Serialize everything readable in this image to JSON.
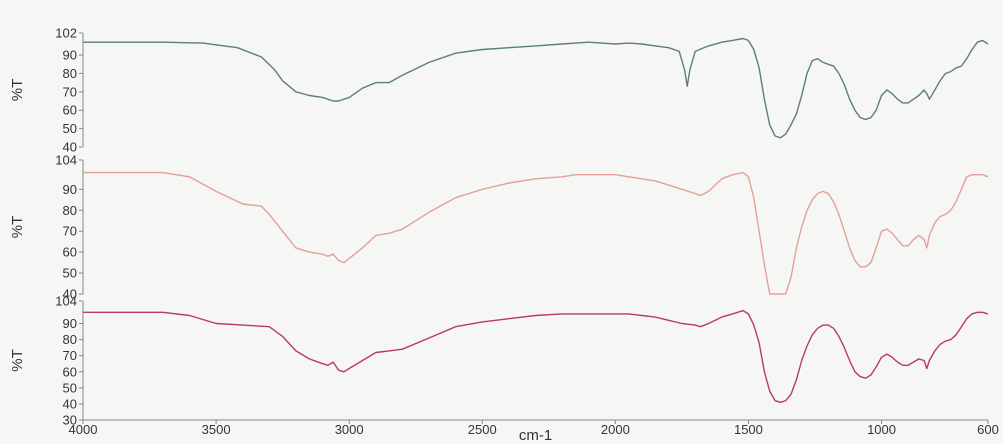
{
  "chart_data": [
    {
      "type": "line",
      "ylabel": "%T",
      "ylim": [
        40,
        102
      ],
      "ytick_labels": [
        "102",
        "90",
        "80",
        "70",
        "60",
        "50",
        "40"
      ],
      "yticks": [
        102,
        90,
        80,
        70,
        60,
        50,
        40
      ],
      "xlim": [
        4000,
        600
      ],
      "series": [
        {
          "color": "#5b7f7a",
          "x": [
            4000,
            3700,
            3550,
            3420,
            3330,
            3280,
            3250,
            3200,
            3150,
            3100,
            3060,
            3040,
            3000,
            2950,
            2900,
            2850,
            2800,
            2700,
            2600,
            2500,
            2400,
            2300,
            2200,
            2150,
            2100,
            2050,
            2000,
            1950,
            1900,
            1850,
            1800,
            1760,
            1740,
            1730,
            1720,
            1700,
            1650,
            1600,
            1560,
            1520,
            1500,
            1480,
            1460,
            1440,
            1420,
            1400,
            1380,
            1360,
            1340,
            1320,
            1300,
            1280,
            1260,
            1240,
            1220,
            1200,
            1180,
            1160,
            1140,
            1120,
            1100,
            1080,
            1060,
            1040,
            1020,
            1000,
            980,
            960,
            940,
            920,
            900,
            880,
            860,
            840,
            830,
            820,
            800,
            780,
            760,
            740,
            720,
            700,
            680,
            660,
            640,
            620,
            600
          ],
          "y": [
            97,
            97,
            96.5,
            94,
            89,
            82,
            76,
            70,
            68,
            67,
            65,
            65,
            67,
            72,
            75,
            75,
            79,
            86,
            91,
            93,
            94,
            95,
            96,
            96.5,
            97,
            96.5,
            96,
            96.5,
            96,
            95,
            94,
            92,
            82,
            73,
            82,
            92,
            95,
            97,
            98,
            99,
            98,
            93,
            83,
            66,
            52,
            46,
            45,
            47,
            52,
            58,
            68,
            80,
            87,
            88,
            86,
            85,
            84,
            80,
            74,
            66,
            60,
            56,
            55,
            56,
            60,
            68,
            71,
            69,
            66,
            64,
            64,
            66,
            68,
            71,
            69,
            66,
            71,
            76,
            80,
            81,
            83,
            84,
            88,
            93,
            97,
            98,
            96
          ]
        }
      ]
    },
    {
      "type": "line",
      "ylabel": "%T",
      "ylim": [
        40,
        104
      ],
      "ytick_labels": [
        "104",
        "90",
        "80",
        "70",
        "60",
        "50",
        "40"
      ],
      "yticks": [
        104,
        90,
        80,
        70,
        60,
        50,
        40
      ],
      "xlim": [
        4000,
        600
      ],
      "series": [
        {
          "color": "#e3a09a",
          "x": [
            4000,
            3700,
            3600,
            3500,
            3400,
            3330,
            3300,
            3250,
            3200,
            3150,
            3100,
            3080,
            3060,
            3040,
            3020,
            3000,
            2950,
            2900,
            2850,
            2800,
            2700,
            2600,
            2500,
            2400,
            2300,
            2200,
            2150,
            2100,
            2050,
            2000,
            1950,
            1900,
            1850,
            1800,
            1750,
            1700,
            1680,
            1650,
            1600,
            1560,
            1520,
            1500,
            1480,
            1460,
            1440,
            1420,
            1410,
            1400,
            1370,
            1360,
            1340,
            1320,
            1300,
            1280,
            1260,
            1240,
            1220,
            1200,
            1180,
            1160,
            1140,
            1120,
            1100,
            1080,
            1060,
            1040,
            1020,
            1000,
            980,
            960,
            940,
            920,
            900,
            880,
            860,
            840,
            830,
            820,
            800,
            780,
            760,
            740,
            720,
            700,
            680,
            660,
            640,
            620,
            600
          ],
          "y": [
            98,
            98,
            96,
            89,
            83,
            82,
            78,
            70,
            62,
            60,
            59,
            58,
            59,
            56,
            55,
            57,
            62,
            68,
            69,
            71,
            79,
            86,
            90,
            93,
            95,
            96,
            97,
            97,
            97,
            97,
            96,
            95,
            94,
            92,
            90,
            88,
            87,
            89,
            95,
            97,
            98,
            96,
            86,
            70,
            54,
            40,
            40,
            40,
            40,
            40,
            48,
            62,
            72,
            80,
            85,
            88,
            89,
            88,
            84,
            78,
            70,
            62,
            56,
            53,
            53,
            55,
            62,
            70,
            71,
            69,
            66,
            63,
            63,
            66,
            68,
            66,
            62,
            68,
            74,
            77,
            78,
            80,
            84,
            90,
            96,
            97,
            97,
            97,
            96
          ]
        }
      ]
    },
    {
      "type": "line",
      "ylabel": "%T",
      "ylim": [
        30,
        104
      ],
      "ytick_labels": [
        "104",
        "90",
        "80",
        "70",
        "60",
        "50",
        "40",
        "30"
      ],
      "yticks": [
        104,
        90,
        80,
        70,
        60,
        50,
        40,
        30
      ],
      "xlim": [
        4000,
        600
      ],
      "xticks": [
        4000,
        3500,
        3000,
        2500,
        2000,
        1500,
        1000,
        600
      ],
      "xtick_labels": [
        "4000",
        "3500",
        "3000",
        "2500",
        "2000",
        "1500",
        "1000",
        "600"
      ],
      "xlabel": "cm-1",
      "series": [
        {
          "color": "#b8396e",
          "x": [
            4000,
            3700,
            3600,
            3500,
            3400,
            3300,
            3250,
            3200,
            3150,
            3100,
            3080,
            3060,
            3040,
            3020,
            3000,
            2950,
            2900,
            2850,
            2800,
            2700,
            2600,
            2500,
            2400,
            2300,
            2200,
            2150,
            2100,
            2050,
            2000,
            1950,
            1900,
            1850,
            1800,
            1750,
            1700,
            1680,
            1650,
            1600,
            1560,
            1520,
            1500,
            1480,
            1460,
            1440,
            1420,
            1400,
            1380,
            1360,
            1340,
            1320,
            1300,
            1280,
            1260,
            1240,
            1220,
            1200,
            1180,
            1160,
            1140,
            1120,
            1100,
            1080,
            1060,
            1040,
            1020,
            1000,
            980,
            960,
            940,
            920,
            900,
            880,
            860,
            840,
            830,
            820,
            800,
            780,
            760,
            740,
            720,
            700,
            680,
            660,
            640,
            620,
            600
          ],
          "y": [
            97,
            97,
            95,
            90,
            89,
            88,
            82,
            73,
            68,
            65,
            64,
            66,
            61,
            60,
            62,
            67,
            72,
            73,
            74,
            81,
            88,
            91,
            93,
            95,
            96,
            96,
            96,
            96,
            96,
            96,
            95,
            94,
            92,
            90,
            89,
            88,
            90,
            94,
            96,
            98,
            96,
            89,
            78,
            60,
            48,
            42,
            41,
            42,
            46,
            55,
            67,
            76,
            83,
            87,
            89,
            89,
            87,
            82,
            75,
            67,
            60,
            57,
            56,
            58,
            63,
            69,
            71,
            69,
            66,
            64,
            64,
            66,
            68,
            67,
            62,
            67,
            73,
            77,
            79,
            80,
            83,
            88,
            93,
            96,
            97,
            97,
            96
          ]
        }
      ]
    }
  ]
}
